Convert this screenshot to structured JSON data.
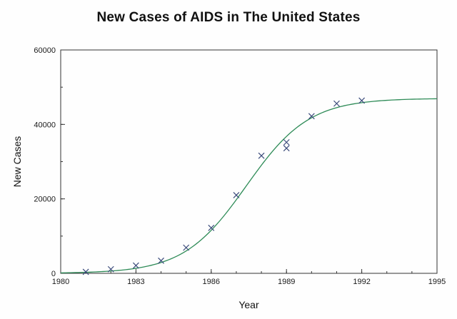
{
  "chart_data": {
    "type": "scatter",
    "title": "New Cases of AIDS in The United States",
    "xlabel": "Year",
    "ylabel": "New Cases",
    "xlim": [
      1980,
      1995
    ],
    "ylim": [
      0,
      60000
    ],
    "x_major_ticks": [
      1980,
      1983,
      1986,
      1989,
      1992,
      1995
    ],
    "x_minor_step": 1,
    "y_major_ticks": [
      0,
      20000,
      40000,
      60000
    ],
    "y_minor_step": 10000,
    "grid": false,
    "legend": "none",
    "points": [
      {
        "x": 1981,
        "y": 400
      },
      {
        "x": 1982,
        "y": 1100
      },
      {
        "x": 1983,
        "y": 2100
      },
      {
        "x": 1984,
        "y": 3400
      },
      {
        "x": 1985,
        "y": 6900
      },
      {
        "x": 1986,
        "y": 12200
      },
      {
        "x": 1987,
        "y": 21000
      },
      {
        "x": 1988,
        "y": 31600
      },
      {
        "x": 1989,
        "y": 33600
      },
      {
        "x": 1989,
        "y": 35200
      },
      {
        "x": 1990,
        "y": 42200
      },
      {
        "x": 1991,
        "y": 45600
      },
      {
        "x": 1992,
        "y": 46400
      }
    ],
    "fit_curve": {
      "model": "logistic",
      "L": 47000,
      "k": 0.8,
      "x0": 1987.4
    },
    "colors": {
      "curve": "#2e8b57",
      "marker": "#3a4a7a",
      "axis": "#333333",
      "background": "#fefefe"
    }
  }
}
